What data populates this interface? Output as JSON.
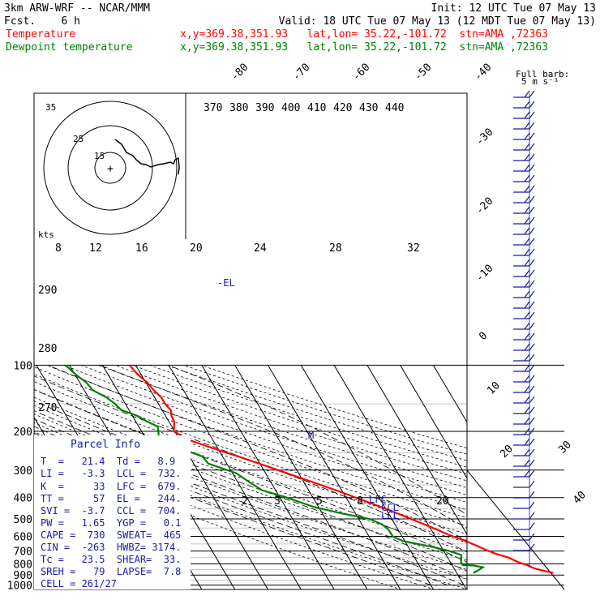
{
  "header": {
    "model": "3km ARW-WRF -- NCAR/MMM",
    "init": "Init: 12 UTC Tue 07 May 13",
    "fcst": "Fcst.    6 h",
    "valid": "Valid: 18 UTC Tue 07 May 13 (12 MDT Tue 07 May 13)",
    "temp_label": "Temperature",
    "temp_loc": "x,y=369.38,351.93   lat,lon= 35.22,-101.72  stn=AMA ,72363",
    "dew_label": "Dewpoint temperature",
    "dew_loc": "x,y=369.38,351.93   lat,lon= 35.22,-101.72  stn=AMA ,72363"
  },
  "barb_legend": {
    "line1": "Full barb:",
    "line2": "5 m s⁻¹"
  },
  "axes": {
    "pressure_ticks": [
      "100",
      "200",
      "300",
      "400",
      "500",
      "600",
      "700",
      "800",
      "900",
      "1000"
    ],
    "temp_ticks_top": [
      "-80",
      "-70",
      "-60",
      "-50",
      "-40"
    ],
    "temp_ticks_right": [
      "-30",
      "-20",
      "-10",
      "0",
      "10",
      "20",
      "30",
      "40"
    ],
    "theta_labels": [
      "370",
      "380",
      "390",
      "400",
      "410",
      "420",
      "430",
      "440"
    ],
    "theta_left": [
      "290",
      "280",
      "270"
    ],
    "mixing_ratio": [
      "8",
      "12",
      "16",
      "20",
      "24",
      "28",
      "32"
    ],
    "mixing_low": [
      "2",
      "3",
      "5",
      "8",
      "20"
    ],
    "hodo_rings": [
      "35",
      "25",
      "15"
    ],
    "kts": "kts"
  },
  "markers": {
    "el": "-EL",
    "m": "M",
    "lfc": "LFC",
    "ccl": "CCL",
    "lcl": "LCL"
  },
  "parcel_info": {
    "title": "Parcel Info",
    "rows": [
      "T  =   21.4  Td =   8.9",
      "LI =   -3.3  LCL =  732.",
      "K  =     33  LFC =  679.",
      "TT =     57  EL =   244.",
      "SVI =  -3.7  CCL =  704.",
      "PW =   1.65  YGP =   0.1",
      "CAPE =  730  SWEAT=  465",
      "CIN =  -263  HWBZ= 3174.",
      "Tc =   23.5  SHEAR=  33.",
      "SREH =   79  LAPSE=  7.8",
      "CELL = 261/27"
    ]
  },
  "colors": {
    "temperature": "#ff0000",
    "dewpoint": "#008000",
    "barbs": "#1a1aa6",
    "annot": "#1a1aa6"
  },
  "chart_data": {
    "type": "line",
    "subtype": "skew-T log-p",
    "station": "AMA 72363",
    "pressure_axis_range_hPa": [
      1050,
      100
    ],
    "series": [
      {
        "name": "Temperature",
        "p": [
          880,
          860,
          840,
          810,
          790,
          770,
          750,
          720,
          690,
          660,
          620,
          590,
          560,
          530,
          500,
          470,
          440,
          410,
          380,
          350,
          320,
          290,
          260,
          240,
          220,
          200,
          190,
          180,
          170,
          160,
          150,
          140,
          130,
          120,
          110,
          100
        ],
        "t": [
          29.2,
          26.7,
          24.3,
          22.6,
          20.8,
          19.6,
          18.5,
          15.2,
          12.8,
          10.8,
          7.5,
          4.3,
          1.8,
          -1.1,
          -4.2,
          -7.6,
          -11.3,
          -15.6,
          -20.2,
          -25.4,
          -31.4,
          -37.9,
          -45.3,
          -51.1,
          -56.9,
          -60.3,
          -59.3,
          -58.4,
          -58.2,
          -57.4,
          -58.0,
          -58.0,
          -59.0,
          -59.6,
          -61.1,
          -61.8
        ]
      },
      {
        "name": "Dewpoint temperature",
        "p": [
          880,
          860,
          830,
          815,
          810,
          790,
          760,
          730,
          700,
          670,
          630,
          600,
          560,
          530,
          500,
          470,
          440,
          400,
          370,
          340,
          310,
          280,
          260,
          240,
          220,
          200,
          190,
          180,
          170,
          160,
          150,
          140,
          130,
          120,
          110,
          100
        ],
        "t": [
          5.0,
          6.7,
          8.9,
          6.5,
          3.2,
          3.2,
          3.8,
          4.6,
          1.7,
          -2.7,
          -10.6,
          -12.8,
          -12.9,
          -13.9,
          -16.7,
          -24.7,
          -31.6,
          -37.9,
          -44.1,
          -46.5,
          -48.8,
          -55.6,
          -56.1,
          -61.1,
          -66.5,
          -64.9,
          -64.3,
          -66.7,
          -68.5,
          -72.4,
          -73.1,
          -74.6,
          -77.4,
          -78.0,
          -79.8,
          -81.2
        ]
      }
    ]
  }
}
